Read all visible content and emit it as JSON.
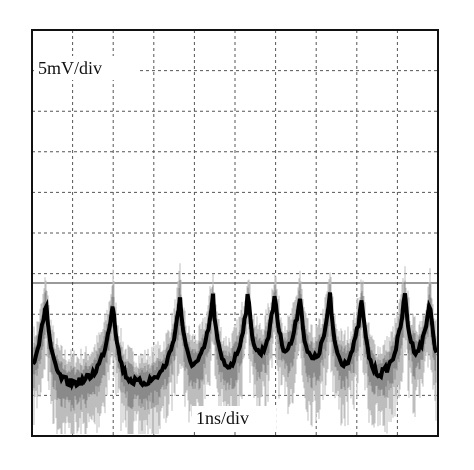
{
  "screen": {
    "vertical_scale": "5mV/div",
    "horizontal_scale": "1ns/div"
  }
}
